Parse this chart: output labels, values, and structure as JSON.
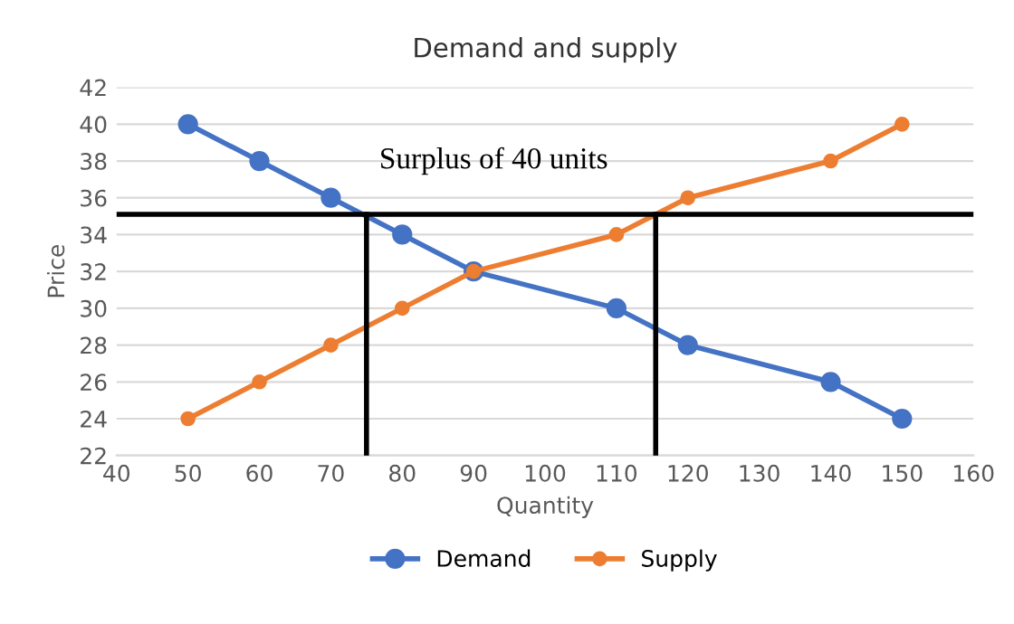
{
  "chart_data": {
    "type": "line",
    "title": "Demand and supply",
    "xlabel": "Quantity",
    "ylabel": "Price",
    "xlim": [
      40,
      160
    ],
    "xticks": [
      40,
      50,
      60,
      70,
      80,
      90,
      100,
      110,
      120,
      130,
      140,
      150,
      160
    ],
    "ylim": [
      22,
      42
    ],
    "yticks": [
      22,
      24,
      26,
      28,
      30,
      32,
      34,
      36,
      38,
      40,
      42
    ],
    "grid": "y",
    "legend": "bottom",
    "marker": "circle",
    "line_style": "solid",
    "annotations": [
      "Surplus of 40 units"
    ],
    "series": [
      {
        "name": "Demand",
        "color": "#4472c4",
        "x": [
          50,
          60,
          70,
          80,
          90,
          110,
          120,
          140,
          150
        ],
        "values": [
          40,
          38,
          36,
          34,
          32,
          30,
          28,
          26,
          24
        ]
      },
      {
        "name": "Supply",
        "color": "#ed7d31",
        "x": [
          50,
          60,
          70,
          80,
          90,
          110,
          120,
          140,
          150
        ],
        "values": [
          24,
          26,
          28,
          30,
          32,
          34,
          36,
          38,
          40
        ]
      },
      {
        "color": "#000000",
        "marker": "none",
        "x": [
          40,
          160
        ],
        "values": [
          35.1,
          35.1
        ]
      },
      {
        "color": "#000000",
        "marker": "none",
        "x": [
          75,
          75
        ],
        "values": [
          22,
          35.1
        ]
      },
      {
        "color": "#000000",
        "marker": "none",
        "x": [
          115.5,
          115.5
        ],
        "values": [
          22,
          35.1
        ]
      }
    ]
  }
}
